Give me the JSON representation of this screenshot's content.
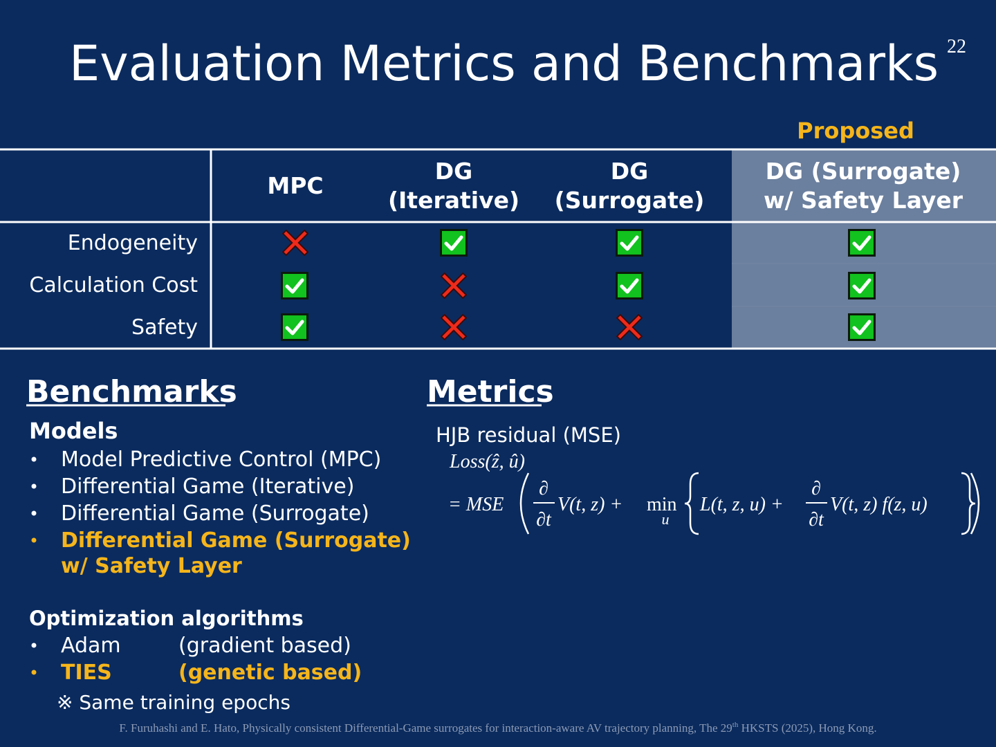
{
  "page_number": "22",
  "title": "Evaluation Metrics and Benchmarks",
  "table": {
    "proposed_label": "Proposed",
    "columns": [
      [
        "MPC"
      ],
      [
        "DG",
        "(Iterative)"
      ],
      [
        "DG",
        "(Surrogate)"
      ],
      [
        "DG (Surrogate)",
        "w/ Safety Layer"
      ]
    ],
    "rows": [
      "Endogeneity",
      "Calculation Cost",
      "Safety"
    ]
  },
  "benchmarks": {
    "heading": "Benchmarks",
    "models_heading": "Models",
    "models": [
      [
        "Model Predictive Control (MPC)"
      ],
      [
        "Differential Game (Iterative)"
      ],
      [
        "Differential Game (Surrogate)"
      ],
      [
        "Differential Game (Surrogate)",
        "w/ Safety Layer"
      ]
    ],
    "optim_heading": "Optimization algorithms",
    "optimizers": [
      {
        "name": "Adam",
        "note": "(gradient based)"
      },
      {
        "name": "TIES",
        "note": "(genetic based)"
      }
    ],
    "footnote": "※ Same training epochs"
  },
  "metrics": {
    "heading": "Metrics",
    "label": "HJB residual (MSE)",
    "formula": {
      "lhs": "Loss(ẑ, û)",
      "eq": "= MSE",
      "d1_num": "∂",
      "d1_den": "∂t",
      "t1": "V(t, z) +",
      "min": "min",
      "min_sub": "u",
      "t2": "L(t, z, u) +",
      "d2_num": "∂",
      "d2_den": "∂t",
      "t3": "V(t, z)  f(z, u)"
    }
  },
  "citation": {
    "before": "F. Furuhashi and E. Hato, Physically consistent  Differential-Game surrogates for interaction-aware AV trajectory planning, The 29",
    "sup": "th",
    "after": " HKSTS (2025), Hong Kong."
  }
}
